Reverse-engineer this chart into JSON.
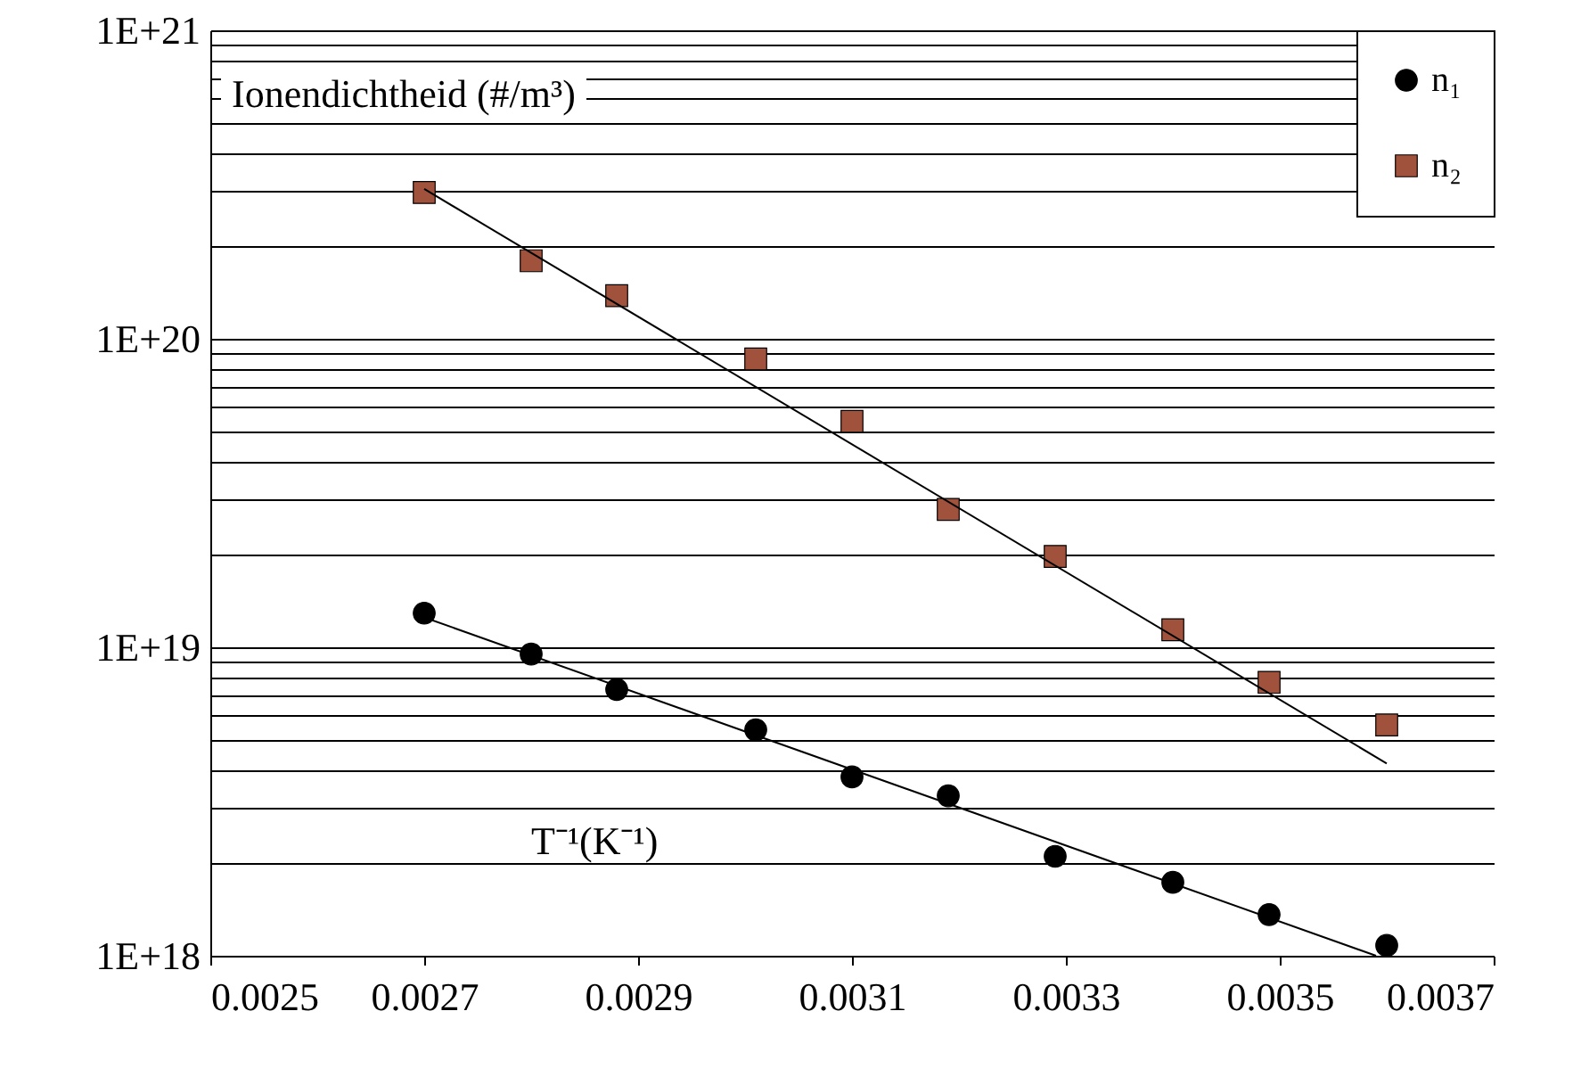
{
  "chart_data": {
    "type": "scatter",
    "xlim": [
      0.0025,
      0.0037
    ],
    "xticks": [
      0.0025,
      0.0027,
      0.0029,
      0.0031,
      0.0033,
      0.0035,
      0.0037
    ],
    "ylim": [
      1e+18,
      1e+21
    ],
    "log": true,
    "grid": "y",
    "yticks": [
      {
        "value": 1e+18,
        "label": "1E+18"
      },
      {
        "value": 2e+18,
        "label": null
      },
      {
        "value": 3e+18,
        "label": null
      },
      {
        "value": 4e+18,
        "label": null
      },
      {
        "value": 5e+18,
        "label": null
      },
      {
        "value": 6e+18,
        "label": null
      },
      {
        "value": 7e+18,
        "label": null
      },
      {
        "value": 8e+18,
        "label": null
      },
      {
        "value": 9e+18,
        "label": null
      },
      {
        "value": 1e+19,
        "label": "1E+19"
      },
      {
        "value": 2e+19,
        "label": null
      },
      {
        "value": 3e+19,
        "label": null
      },
      {
        "value": 4e+19,
        "label": null
      },
      {
        "value": 5e+19,
        "label": null
      },
      {
        "value": 6e+19,
        "label": null
      },
      {
        "value": 7e+19,
        "label": null
      },
      {
        "value": 8e+19,
        "label": null
      },
      {
        "value": 9e+19,
        "label": null
      },
      {
        "value": 1e+20,
        "label": "1E+20"
      },
      {
        "value": 2e+20,
        "label": null
      },
      {
        "value": 3e+20,
        "label": null
      },
      {
        "value": 4e+20,
        "label": null
      },
      {
        "value": 5e+20,
        "label": null
      },
      {
        "value": 6e+20,
        "label": null
      },
      {
        "value": 7e+20,
        "label": null
      },
      {
        "value": 8e+20,
        "label": null
      },
      {
        "value": 9e+20,
        "label": null
      },
      {
        "value": 1e+21,
        "label": "1E+21"
      }
    ],
    "legend": "top right",
    "annotations": [
      "Ionendichtheid (#/m³)",
      "T⁻¹(K⁻¹)"
    ],
    "series": [
      {
        "name": "n₁",
        "color": "#000000",
        "marker": "circle",
        "x": [
          0.0027,
          0.0028,
          0.00288,
          0.00301,
          0.0031,
          0.00319,
          0.00329,
          0.0034,
          0.00349,
          0.0036
        ],
        "values": [
          1.29e+19,
          9.5e+18,
          7.3e+18,
          5.4e+18,
          3.8e+18,
          3.3e+18,
          2.1e+18,
          1.73e+18,
          1.36e+18,
          1.08e+18
        ]
      },
      {
        "name": "n₂",
        "color": "#a0523d",
        "marker": "square",
        "x": [
          0.0027,
          0.0028,
          0.00288,
          0.00301,
          0.0031,
          0.00319,
          0.00329,
          0.0034,
          0.00349,
          0.0036
        ],
        "values": [
          2.98e+20,
          1.79e+20,
          1.38e+20,
          8.6e+19,
          5.4e+19,
          2.8e+19,
          1.97e+19,
          1.14e+19,
          7.7e+18,
          5.6e+18
        ]
      },
      {
        "type": "line",
        "color": "#000000",
        "marker": "none",
        "x": [
          0.0027,
          0.00359
        ],
        "values": [
          1.25e+19,
          1e+18
        ]
      },
      {
        "type": "line",
        "color": "#000000",
        "marker": "none",
        "x": [
          0.0027,
          0.0036
        ],
        "values": [
          3.06e+20,
          4.2e+18
        ]
      }
    ]
  }
}
